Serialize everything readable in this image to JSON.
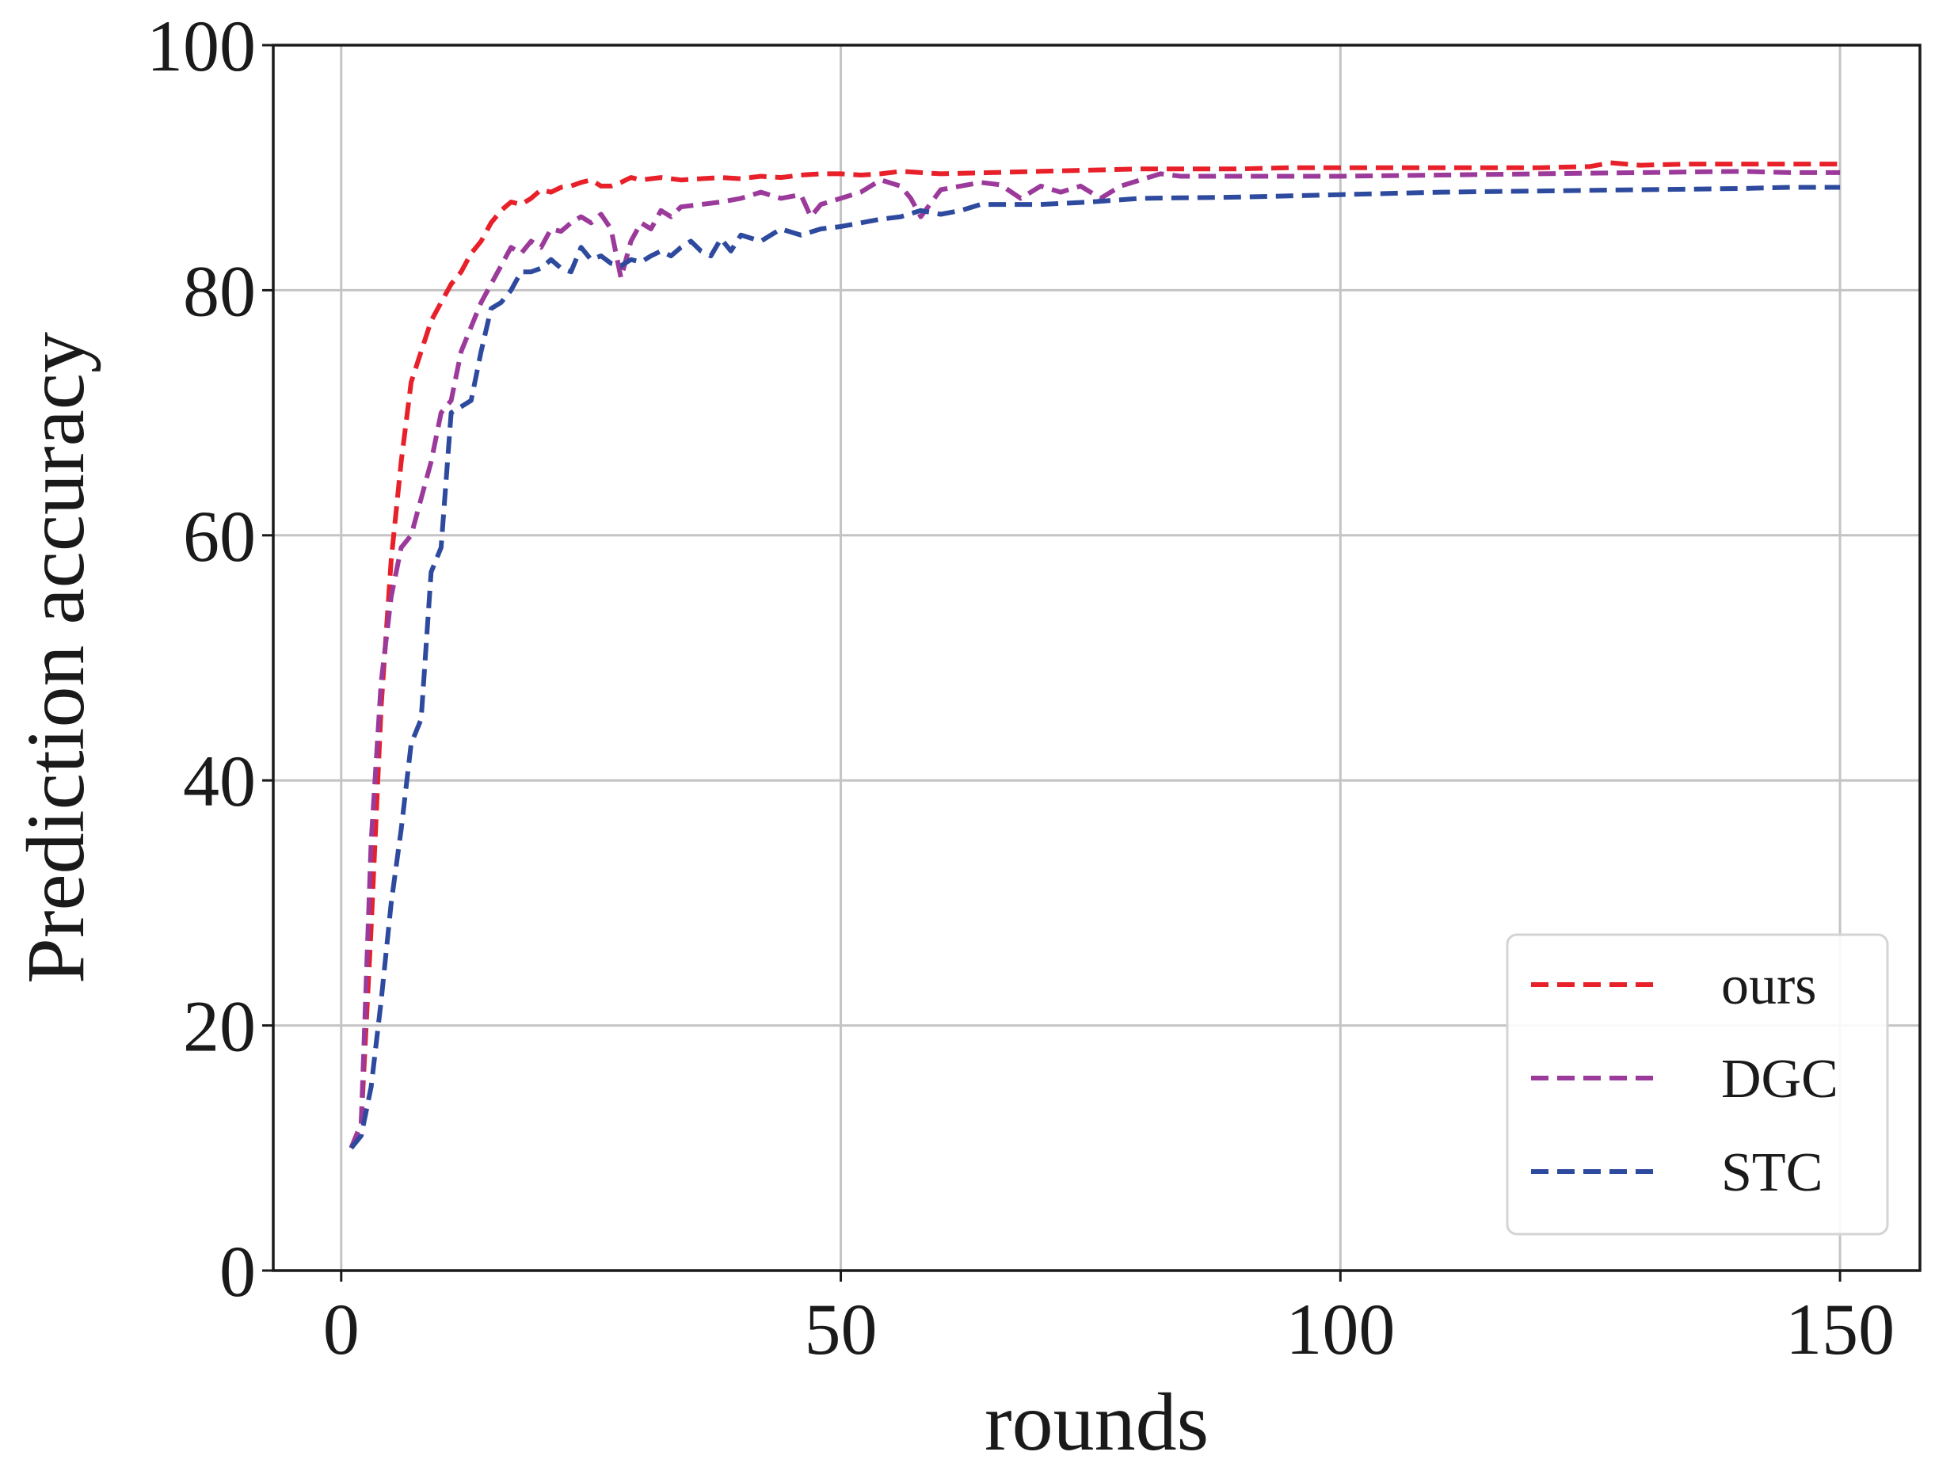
{
  "chart_data": {
    "type": "line",
    "xlabel": "rounds",
    "ylabel": "Prediction accuracy",
    "xlim": [
      -6.8,
      158
    ],
    "ylim": [
      0,
      100
    ],
    "xticks": [
      0,
      50,
      100,
      150
    ],
    "yticks": [
      0,
      20,
      40,
      60,
      80,
      100
    ],
    "grid": true,
    "legend_position": "lower-right",
    "series": [
      {
        "name": "ours",
        "color": "#e8202a",
        "points": [
          [
            1,
            10
          ],
          [
            2,
            12
          ],
          [
            3,
            28
          ],
          [
            4,
            46
          ],
          [
            5,
            58
          ],
          [
            6,
            66
          ],
          [
            7,
            72.5
          ],
          [
            8,
            75
          ],
          [
            9,
            77.5
          ],
          [
            10,
            79
          ],
          [
            11,
            80.5
          ],
          [
            12,
            81.5
          ],
          [
            13,
            83
          ],
          [
            14,
            84
          ],
          [
            15,
            85.5
          ],
          [
            16,
            86.5
          ],
          [
            17,
            87.2
          ],
          [
            18,
            87
          ],
          [
            19,
            87.5
          ],
          [
            20,
            88.2
          ],
          [
            21,
            88
          ],
          [
            22,
            88.4
          ],
          [
            23,
            88.5
          ],
          [
            24,
            88.8
          ],
          [
            25,
            89
          ],
          [
            26,
            88.5
          ],
          [
            27,
            88.5
          ],
          [
            28,
            88.8
          ],
          [
            29,
            89.2
          ],
          [
            30,
            89
          ],
          [
            31,
            89.1
          ],
          [
            32,
            89.2
          ],
          [
            34,
            89
          ],
          [
            36,
            89.1
          ],
          [
            38,
            89.2
          ],
          [
            40,
            89.1
          ],
          [
            42,
            89.3
          ],
          [
            44,
            89.2
          ],
          [
            46,
            89.4
          ],
          [
            48,
            89.5
          ],
          [
            50,
            89.5
          ],
          [
            52,
            89.4
          ],
          [
            54,
            89.5
          ],
          [
            56,
            89.7
          ],
          [
            58,
            89.6
          ],
          [
            60,
            89.5
          ],
          [
            65,
            89.6
          ],
          [
            70,
            89.7
          ],
          [
            75,
            89.8
          ],
          [
            80,
            89.9
          ],
          [
            85,
            89.9
          ],
          [
            90,
            89.9
          ],
          [
            95,
            90
          ],
          [
            100,
            90
          ],
          [
            105,
            90
          ],
          [
            110,
            90
          ],
          [
            115,
            90
          ],
          [
            120,
            90
          ],
          [
            125,
            90.1
          ],
          [
            127,
            90.4
          ],
          [
            130,
            90.2
          ],
          [
            135,
            90.3
          ],
          [
            140,
            90.3
          ],
          [
            145,
            90.3
          ],
          [
            150,
            90.3
          ]
        ]
      },
      {
        "name": "DGC",
        "color": "#9b3a9b",
        "points": [
          [
            1,
            10
          ],
          [
            2,
            12
          ],
          [
            3,
            35
          ],
          [
            4,
            48
          ],
          [
            5,
            55
          ],
          [
            6,
            59
          ],
          [
            7,
            60
          ],
          [
            8,
            63
          ],
          [
            9,
            66
          ],
          [
            10,
            70
          ],
          [
            11,
            71
          ],
          [
            12,
            75
          ],
          [
            13,
            77
          ],
          [
            14,
            79
          ],
          [
            15,
            80.5
          ],
          [
            16,
            82
          ],
          [
            17,
            83.5
          ],
          [
            18,
            83
          ],
          [
            19,
            84
          ],
          [
            20,
            83.5
          ],
          [
            21,
            85
          ],
          [
            22,
            84.8
          ],
          [
            23,
            85.5
          ],
          [
            24,
            86
          ],
          [
            25,
            85.5
          ],
          [
            26,
            86.2
          ],
          [
            27,
            85
          ],
          [
            28,
            81
          ],
          [
            29,
            84
          ],
          [
            30,
            85.5
          ],
          [
            31,
            85
          ],
          [
            32,
            86.5
          ],
          [
            33,
            86
          ],
          [
            34,
            86.8
          ],
          [
            36,
            87
          ],
          [
            38,
            87.2
          ],
          [
            40,
            87.5
          ],
          [
            42,
            88
          ],
          [
            44,
            87.5
          ],
          [
            46,
            87.8
          ],
          [
            47,
            86
          ],
          [
            48,
            87
          ],
          [
            50,
            87.5
          ],
          [
            52,
            88
          ],
          [
            54,
            89
          ],
          [
            56,
            88.5
          ],
          [
            57,
            87.5
          ],
          [
            58,
            86
          ],
          [
            60,
            88.2
          ],
          [
            62,
            88.5
          ],
          [
            64,
            88.8
          ],
          [
            66,
            88.6
          ],
          [
            68,
            87.5
          ],
          [
            70,
            88.5
          ],
          [
            72,
            88
          ],
          [
            74,
            88.5
          ],
          [
            76,
            87.5
          ],
          [
            78,
            88.5
          ],
          [
            80,
            89
          ],
          [
            82,
            89.5
          ],
          [
            84,
            89.3
          ],
          [
            90,
            89.3
          ],
          [
            100,
            89.3
          ],
          [
            110,
            89.4
          ],
          [
            120,
            89.5
          ],
          [
            130,
            89.6
          ],
          [
            140,
            89.7
          ],
          [
            145,
            89.6
          ],
          [
            150,
            89.6
          ]
        ]
      },
      {
        "name": "STC",
        "color": "#2e4a9e",
        "points": [
          [
            1,
            10
          ],
          [
            2,
            11
          ],
          [
            3,
            15
          ],
          [
            4,
            22
          ],
          [
            5,
            30
          ],
          [
            6,
            36
          ],
          [
            7,
            43
          ],
          [
            8,
            45
          ],
          [
            9,
            57
          ],
          [
            10,
            59
          ],
          [
            11,
            70
          ],
          [
            12,
            70.5
          ],
          [
            13,
            71
          ],
          [
            14,
            75
          ],
          [
            15,
            78.5
          ],
          [
            16,
            79
          ],
          [
            17,
            80
          ],
          [
            18,
            81.5
          ],
          [
            19,
            81.5
          ],
          [
            20,
            81.8
          ],
          [
            21,
            82.5
          ],
          [
            22,
            81.8
          ],
          [
            23,
            81.5
          ],
          [
            24,
            83.5
          ],
          [
            25,
            82.5
          ],
          [
            26,
            82.8
          ],
          [
            27,
            82.2
          ],
          [
            28,
            82
          ],
          [
            29,
            82.5
          ],
          [
            30,
            82.3
          ],
          [
            31,
            82.8
          ],
          [
            32,
            83.2
          ],
          [
            33,
            82.8
          ],
          [
            34,
            83.5
          ],
          [
            35,
            84
          ],
          [
            36,
            83.2
          ],
          [
            37,
            82.8
          ],
          [
            38,
            84.2
          ],
          [
            39,
            83.2
          ],
          [
            40,
            84.5
          ],
          [
            42,
            84
          ],
          [
            44,
            85
          ],
          [
            46,
            84.5
          ],
          [
            48,
            85
          ],
          [
            50,
            85.2
          ],
          [
            52,
            85.5
          ],
          [
            54,
            85.8
          ],
          [
            56,
            86
          ],
          [
            58,
            86.5
          ],
          [
            60,
            86.2
          ],
          [
            62,
            86.5
          ],
          [
            64,
            87
          ],
          [
            66,
            87
          ],
          [
            70,
            87
          ],
          [
            75,
            87.2
          ],
          [
            80,
            87.5
          ],
          [
            90,
            87.6
          ],
          [
            100,
            87.8
          ],
          [
            110,
            88
          ],
          [
            120,
            88.1
          ],
          [
            130,
            88.2
          ],
          [
            140,
            88.3
          ],
          [
            145,
            88.4
          ],
          [
            150,
            88.4
          ]
        ]
      }
    ]
  }
}
